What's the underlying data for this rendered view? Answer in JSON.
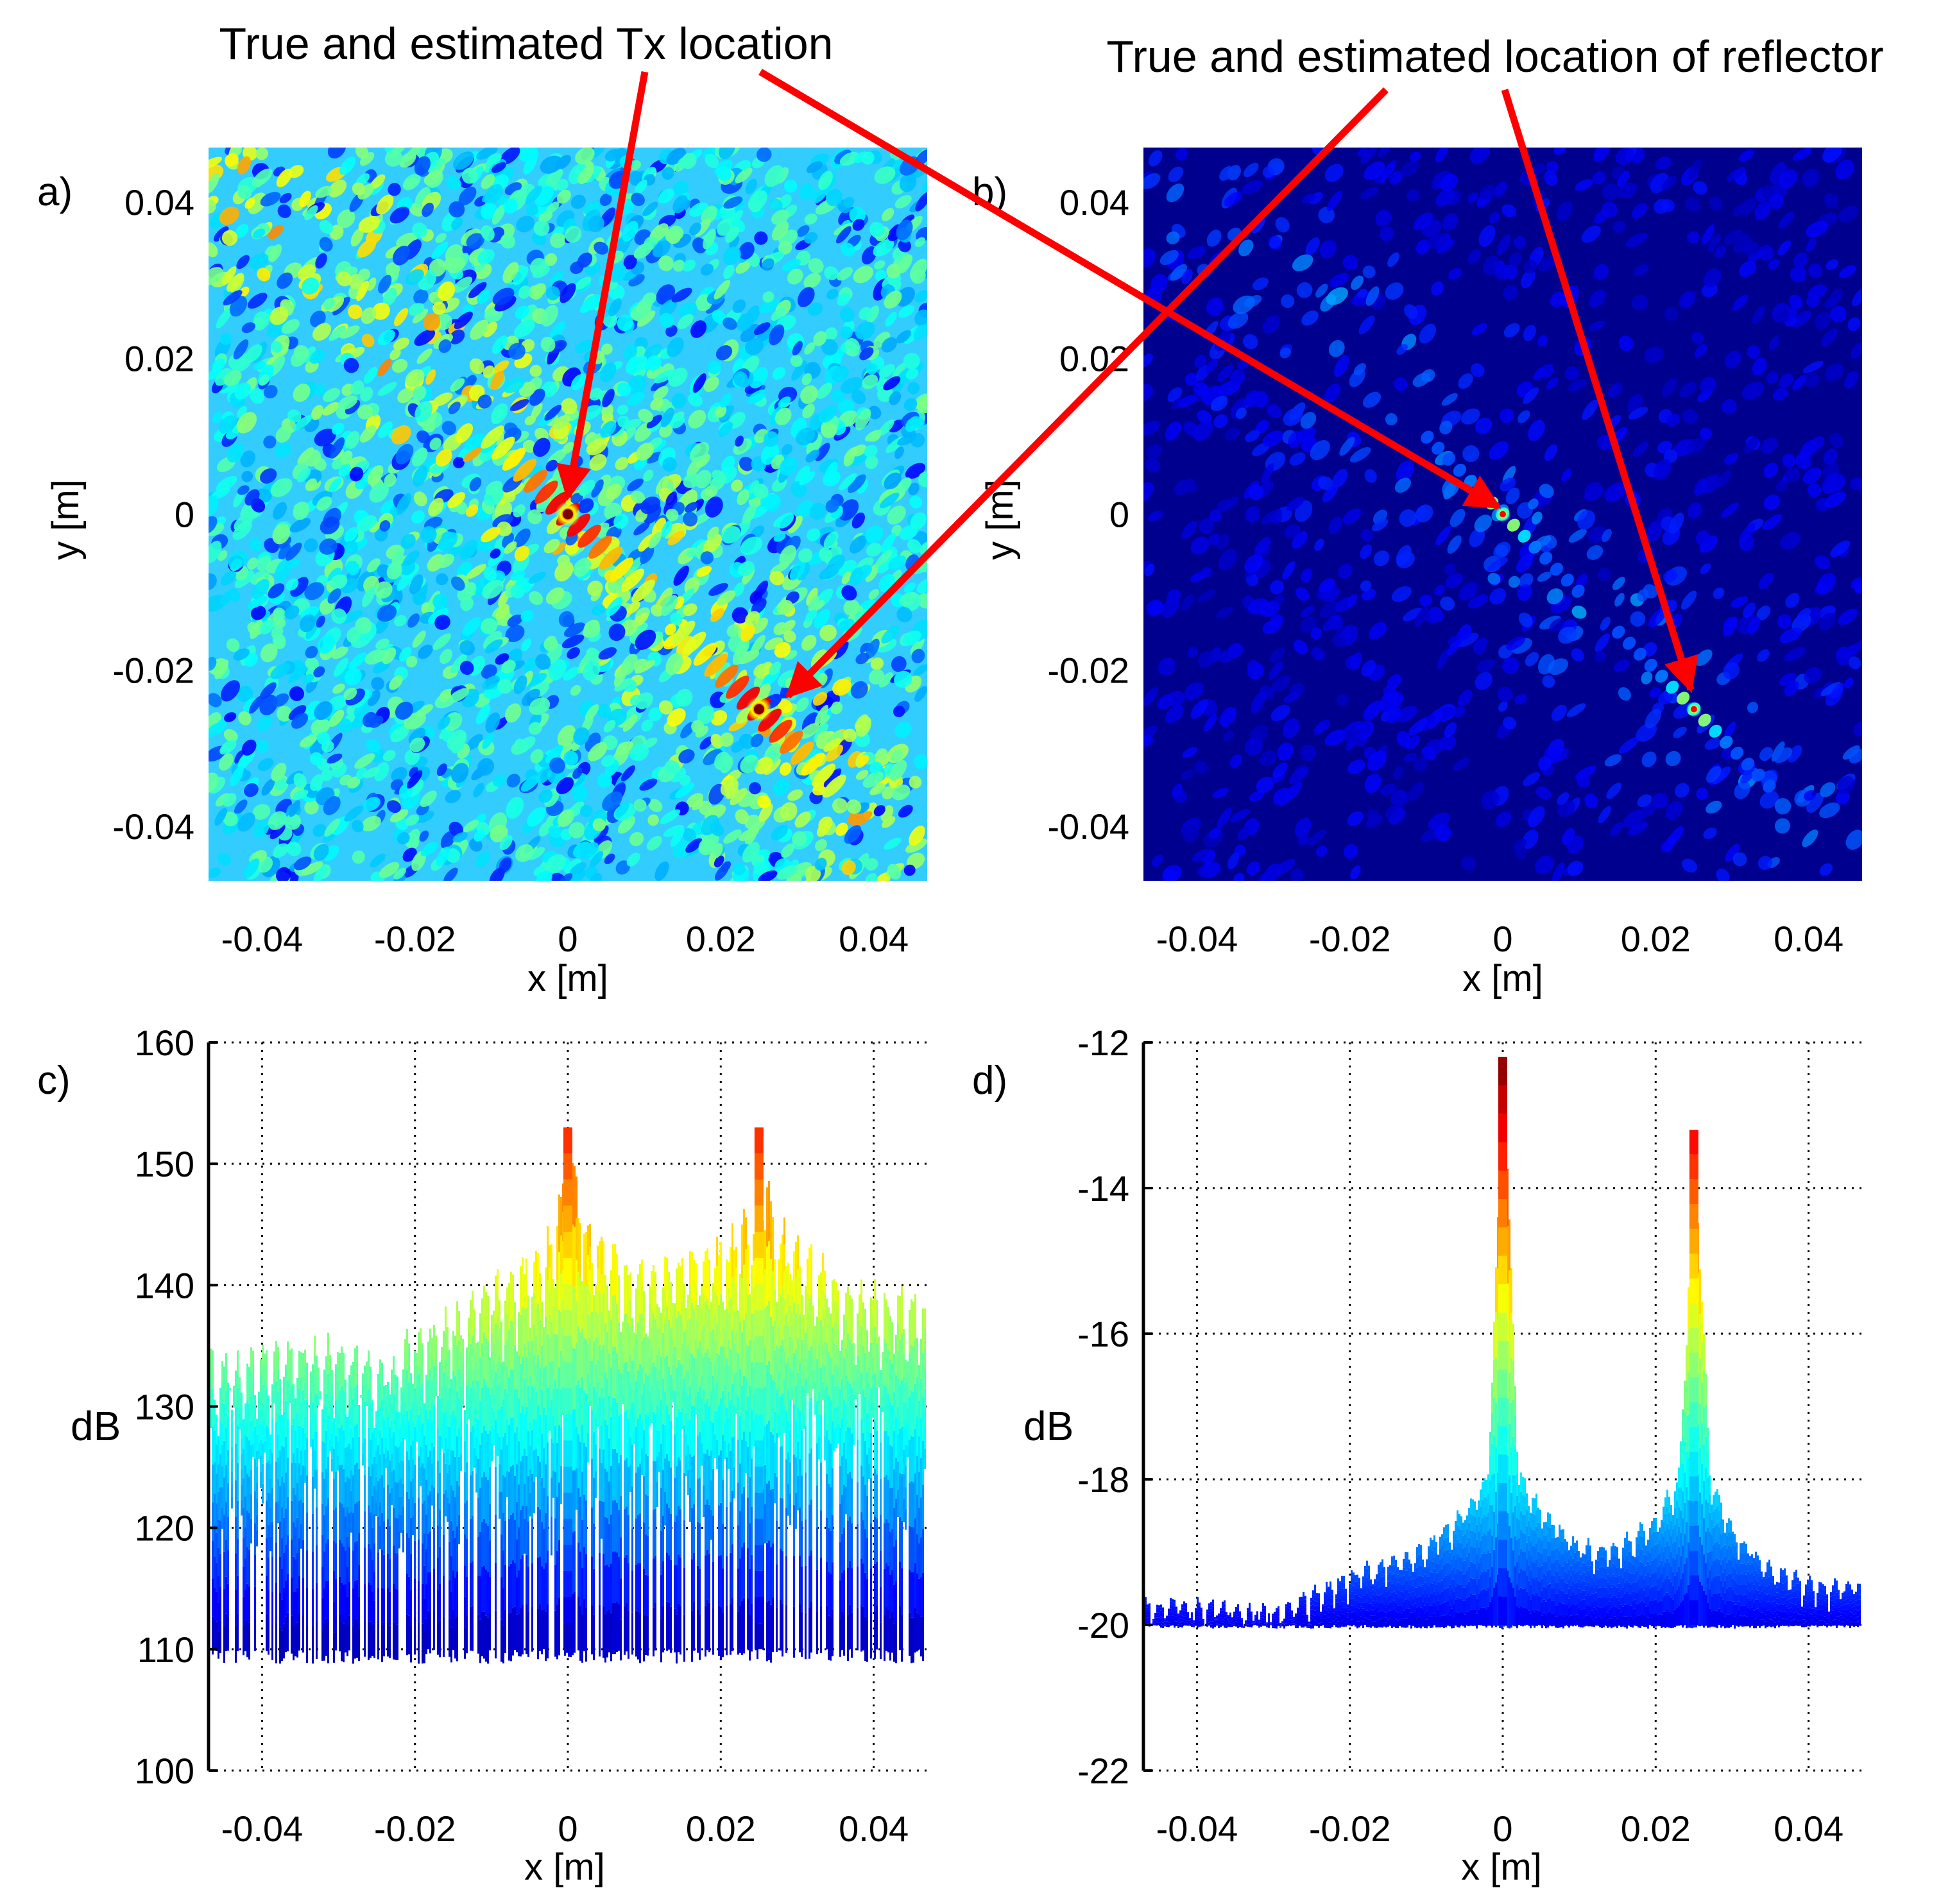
{
  "annotations": {
    "tx": "True and estimated Tx location",
    "reflector": "True and estimated location of reflector"
  },
  "colors": {
    "arrow": "#ff0000",
    "jet_dark_blue": "#00007f",
    "jet_blue": "#0000ff",
    "jet_cyan": "#00ffff",
    "jet_yellow": "#ffff00",
    "jet_red": "#ff0000",
    "jet_dark_red": "#7f0000",
    "grid": "#000000"
  },
  "chart_data": [
    {
      "id": "a",
      "panel_label": "a)",
      "type": "heatmap",
      "xlabel": "x [m]",
      "ylabel": "y [m]",
      "xlim": [
        -0.047,
        0.047
      ],
      "ylim": [
        -0.047,
        0.047
      ],
      "xticks": [
        -0.04,
        -0.02,
        0,
        0.02,
        0.04
      ],
      "xtick_labels": [
        "-0.04",
        "-0.02",
        "0",
        "0.02",
        "0.04"
      ],
      "yticks": [
        0.04,
        0.02,
        0,
        -0.02,
        -0.04
      ],
      "ytick_labels": [
        "0.04",
        "0.02",
        "0",
        "-0.02",
        "-0.04"
      ],
      "colormap": "jet",
      "background_level": "cyan speckle",
      "peaks": [
        {
          "name": "Tx",
          "x": 0.0,
          "y": 0.0
        },
        {
          "name": "reflector",
          "x": 0.025,
          "y": -0.025
        }
      ]
    },
    {
      "id": "b",
      "panel_label": "b)",
      "type": "heatmap",
      "xlabel": "x [m]",
      "ylabel": "y [m]",
      "xlim": [
        -0.047,
        0.047
      ],
      "ylim": [
        -0.047,
        0.047
      ],
      "xticks": [
        -0.04,
        -0.02,
        0,
        0.02,
        0.04
      ],
      "xtick_labels": [
        "-0.04",
        "-0.02",
        "0",
        "0.02",
        "0.04"
      ],
      "yticks": [
        0.04,
        0.02,
        0,
        -0.02,
        -0.04
      ],
      "ytick_labels": [
        "0.04",
        "0.02",
        "0",
        "-0.02",
        "-0.04"
      ],
      "colormap": "jet",
      "background_level": "dark blue",
      "peaks": [
        {
          "name": "Tx",
          "x": 0.0,
          "y": 0.0
        },
        {
          "name": "reflector",
          "x": 0.025,
          "y": -0.025
        }
      ]
    },
    {
      "id": "c",
      "panel_label": "c)",
      "type": "area",
      "xlabel": "x [m]",
      "ylabel": "dB",
      "xlim": [
        -0.047,
        0.047
      ],
      "ylim": [
        100,
        160
      ],
      "xticks": [
        -0.04,
        -0.02,
        0,
        0.02,
        0.04
      ],
      "xtick_labels": [
        "-0.04",
        "-0.02",
        "0",
        "0.02",
        "0.04"
      ],
      "yticks": [
        160,
        150,
        140,
        130,
        120,
        110,
        100
      ],
      "ytick_labels": [
        "160",
        "150",
        "140",
        "130",
        "120",
        "110",
        "100"
      ],
      "grid": true,
      "colormap": "jet",
      "floor_db": 110,
      "envelope": {
        "x": [
          -0.047,
          -0.04,
          -0.03,
          -0.025,
          -0.02,
          -0.015,
          -0.01,
          -0.005,
          -0.002,
          0.0,
          0.002,
          0.005,
          0.01,
          0.015,
          0.02,
          0.024,
          0.025,
          0.027,
          0.03,
          0.035,
          0.04,
          0.047
        ],
        "y": [
          135,
          136,
          137,
          135,
          137,
          139,
          141,
          144,
          146,
          153,
          147,
          144,
          143,
          144,
          145,
          147,
          153,
          147,
          145,
          142,
          141,
          140
        ]
      },
      "peaks": [
        {
          "x": 0.0,
          "y": 153
        },
        {
          "x": 0.025,
          "y": 153
        }
      ]
    },
    {
      "id": "d",
      "panel_label": "d)",
      "type": "area",
      "xlabel": "x [m]",
      "ylabel": "dB",
      "xlim": [
        -0.047,
        0.047
      ],
      "ylim": [
        -22,
        -12
      ],
      "xticks": [
        -0.04,
        -0.02,
        0,
        0.02,
        0.04
      ],
      "xtick_labels": [
        "-0.04",
        "-0.02",
        "0",
        "0.02",
        "0.04"
      ],
      "yticks": [
        -12,
        -14,
        -16,
        -18,
        -20,
        -22
      ],
      "ytick_labels": [
        "-12",
        "-14",
        "-16",
        "-18",
        "-20",
        "-22"
      ],
      "grid": true,
      "colormap": "jet",
      "floor_db": -20,
      "envelope": {
        "x": [
          -0.047,
          -0.04,
          -0.03,
          -0.02,
          -0.015,
          -0.01,
          -0.005,
          -0.002,
          0.0,
          0.002,
          0.005,
          0.01,
          0.015,
          0.02,
          0.023,
          0.025,
          0.027,
          0.03,
          0.035,
          0.04,
          0.047
        ],
        "y": [
          -19.6,
          -19.6,
          -19.7,
          -19.2,
          -19.0,
          -18.8,
          -18.3,
          -17.8,
          -12.2,
          -17.8,
          -18.3,
          -18.8,
          -18.8,
          -18.4,
          -17.8,
          -13.2,
          -17.8,
          -18.6,
          -19.1,
          -19.3,
          -19.3
        ]
      },
      "peaks": [
        {
          "x": 0.0,
          "y": -12.2
        },
        {
          "x": 0.025,
          "y": -13.2
        }
      ]
    }
  ]
}
